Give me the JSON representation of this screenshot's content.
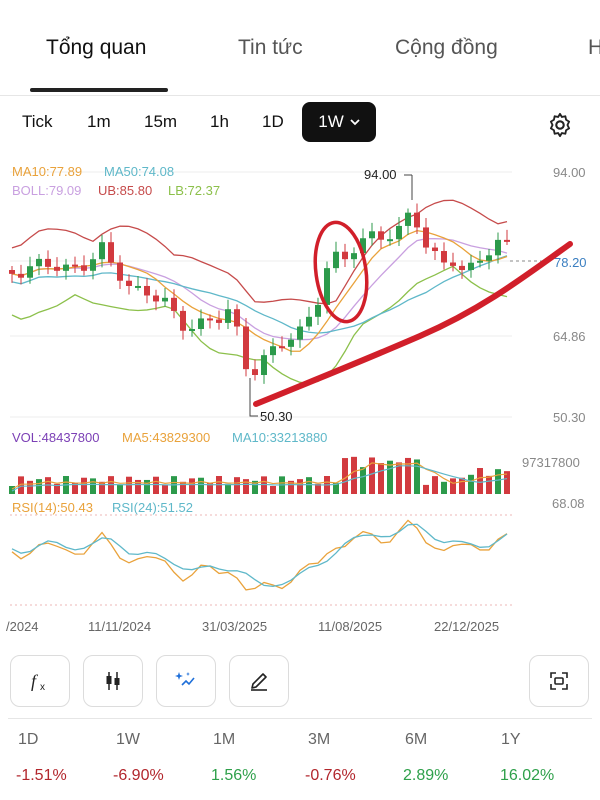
{
  "tabs": [
    {
      "label": "Tổng quan",
      "active": true
    },
    {
      "label": "Tin tức",
      "active": false
    },
    {
      "label": "Cộng đồng",
      "active": false
    },
    {
      "label": "H",
      "active": false
    }
  ],
  "timeframes": [
    "Tick",
    "1m",
    "15m",
    "1h",
    "1D"
  ],
  "active_timeframe": "1W",
  "indicators": {
    "ma10": "MA10:77.89",
    "ma50": "MA50:74.08",
    "boll": "BOLL:79.09",
    "ub": "UB:85.80",
    "lb": "LB:72.37",
    "vol": "VOL:48437800",
    "ma5": "MA5:43829300",
    "vma10": "MA10:33213880",
    "rsi14": "RSI(14):50.43",
    "rsi24": "RSI(24):51.52"
  },
  "axis": {
    "price_ticks": [
      "94.00",
      "78.20",
      "64.86",
      "50.30"
    ],
    "vol_max": "97317800",
    "rsi_top": "68.08",
    "dates": [
      "/2024",
      "11/11/2024",
      "31/03/2025",
      "11/08/2025",
      "22/12/2025"
    ]
  },
  "annotations": {
    "high": "94.00",
    "low": "50.30",
    "last": "78.20"
  },
  "performance": [
    {
      "period": "1D",
      "value": "-1.51%",
      "trend": "neg"
    },
    {
      "period": "1W",
      "value": "-6.90%",
      "trend": "neg"
    },
    {
      "period": "1M",
      "value": "1.56%",
      "trend": "pos"
    },
    {
      "period": "3M",
      "value": "-0.76%",
      "trend": "neg"
    },
    {
      "period": "6M",
      "value": "2.89%",
      "trend": "pos"
    },
    {
      "period": "1Y",
      "value": "16.02%",
      "trend": "pos"
    }
  ],
  "tools": [
    "fx-icon",
    "candlestick-icon",
    "magic-wand-icon",
    "pencil-icon",
    "screenshot-icon"
  ],
  "colors": {
    "up": "#d23a3f",
    "down": "#2c9a4b",
    "ma10": "#e9a23b",
    "ma50": "#5fb8c9",
    "boll": "#c9a0e0",
    "ub": "#c64b4b",
    "lb": "#8cc04b",
    "rsi14": "#e9a23b",
    "rsi24": "#5fb8c9",
    "annotation": "#d11f2a"
  }
}
